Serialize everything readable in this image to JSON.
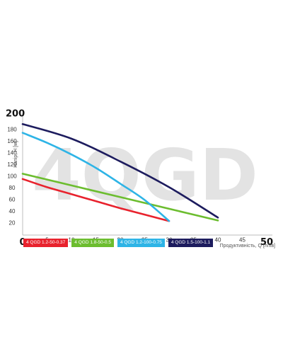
{
  "chart_data": {
    "type": "line",
    "watermark": "4QGD",
    "xlabel": "Продуктивність, Q [л/хв]",
    "ylabel": "Напір, H [м]",
    "xlim": [
      0,
      50
    ],
    "ylim": [
      0,
      200
    ],
    "x_ticks": [
      {
        "value": 0,
        "label": "0",
        "big": true
      },
      {
        "value": 5,
        "label": "5",
        "big": false
      },
      {
        "value": 10,
        "label": "10",
        "big": false
      },
      {
        "value": 15,
        "label": "15",
        "big": false
      },
      {
        "value": 20,
        "label": "20",
        "big": false
      },
      {
        "value": 25,
        "label": "25",
        "big": false
      },
      {
        "value": 30,
        "label": "30",
        "big": false
      },
      {
        "value": 35,
        "label": "35",
        "big": false
      },
      {
        "value": 40,
        "label": "40",
        "big": false
      },
      {
        "value": 45,
        "label": "45",
        "big": false
      },
      {
        "value": 50,
        "label": "50",
        "big": true
      }
    ],
    "y_ticks": [
      {
        "value": 20,
        "label": "20",
        "big": false
      },
      {
        "value": 40,
        "label": "40",
        "big": false
      },
      {
        "value": 60,
        "label": "60",
        "big": false
      },
      {
        "value": 80,
        "label": "80",
        "big": false
      },
      {
        "value": 100,
        "label": "100",
        "big": false
      },
      {
        "value": 120,
        "label": "120",
        "big": false
      },
      {
        "value": 140,
        "label": "140",
        "big": false
      },
      {
        "value": 160,
        "label": "160",
        "big": false
      },
      {
        "value": 180,
        "label": "180",
        "big": false
      },
      {
        "value": 200,
        "label": "200",
        "big": true
      }
    ],
    "grid": false,
    "legend_position": "bottom",
    "series": [
      {
        "name": "4 QGD 1.2-50-0.37",
        "color": "#e8222d",
        "x": [
          0,
          5,
          10,
          15,
          20,
          25,
          30
        ],
        "y": [
          96,
          82,
          70,
          58,
          46,
          35,
          24
        ]
      },
      {
        "name": "4 QGD 1.8-50-0.5",
        "color": "#6cbd2f",
        "x": [
          0,
          10,
          20,
          30,
          40
        ],
        "y": [
          105,
          85,
          65,
          45,
          25
        ]
      },
      {
        "name": "4 QGD 1.2-100-0.75",
        "color": "#2eb4e6",
        "x": [
          0,
          5,
          10,
          15,
          20,
          25,
          30
        ],
        "y": [
          175,
          158,
          138,
          115,
          88,
          60,
          24
        ]
      },
      {
        "name": "4 QGD 1.5-100-1.1",
        "color": "#1d1c5e",
        "x": [
          0,
          10,
          20,
          30,
          40
        ],
        "y": [
          190,
          165,
          126,
          82,
          30
        ]
      }
    ]
  }
}
